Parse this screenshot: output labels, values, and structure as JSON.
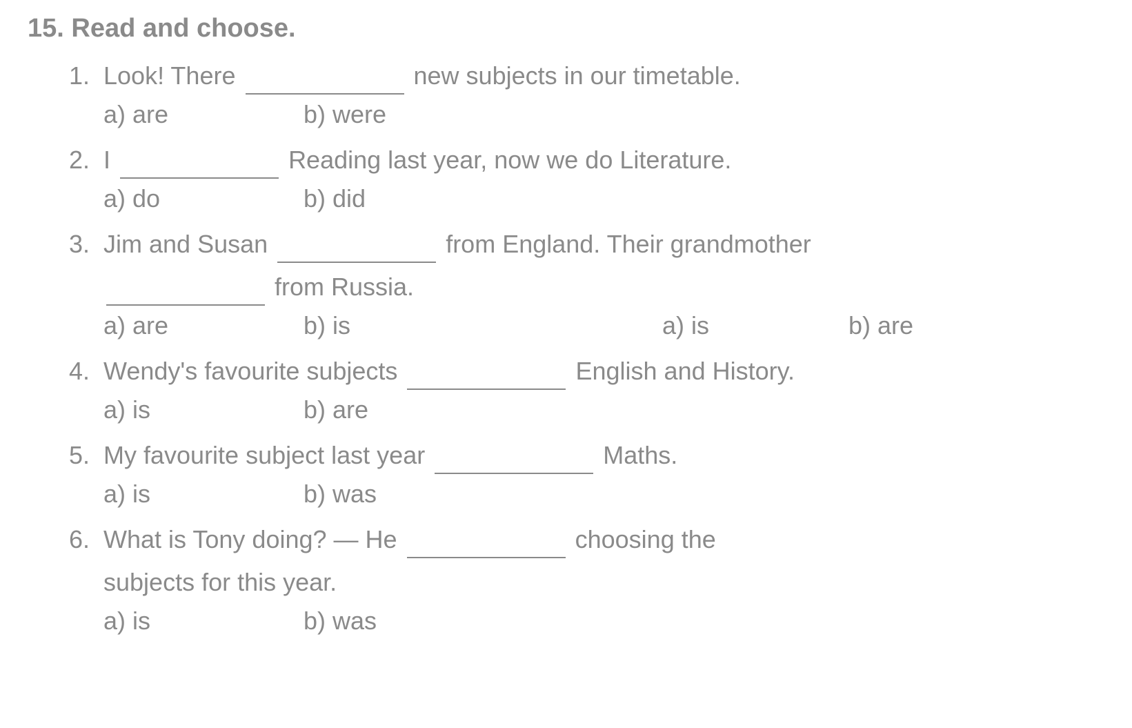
{
  "exercise": {
    "title": "15. Read and choose.",
    "text_color": "#8a8a8a",
    "background_color": "#ffffff",
    "title_fontsize": 38,
    "body_fontsize": 36,
    "questions": [
      {
        "number": "1.",
        "text_before": "Look! There",
        "text_after": "new subjects in our timetable.",
        "option_a": "a) are",
        "option_b": "b) were"
      },
      {
        "number": "2.",
        "text_before": "I",
        "text_after": "Reading last year, now we do Literature.",
        "option_a": "a) do",
        "option_b": "b) did"
      },
      {
        "number": "3.",
        "text_before": "Jim and Susan",
        "text_after": "from England. Their grandmother",
        "line2_after": "from Russia.",
        "option_a": "a) are",
        "option_b": "b) is",
        "option_a2": "a) is",
        "option_b2": "b) are"
      },
      {
        "number": "4.",
        "text_before": "Wendy's favourite subjects",
        "text_after": "English and History.",
        "option_a": "a) is",
        "option_b": "b) are"
      },
      {
        "number": "5.",
        "text_before": "My favourite subject last year",
        "text_after": "Maths.",
        "option_a": "a) is",
        "option_b": "b) was"
      },
      {
        "number": "6.",
        "text_before": "What is Tony doing? — He",
        "text_after": "choosing the",
        "line2": "subjects for  this year.",
        "option_a": "a) is",
        "option_b": "b) was"
      }
    ]
  }
}
